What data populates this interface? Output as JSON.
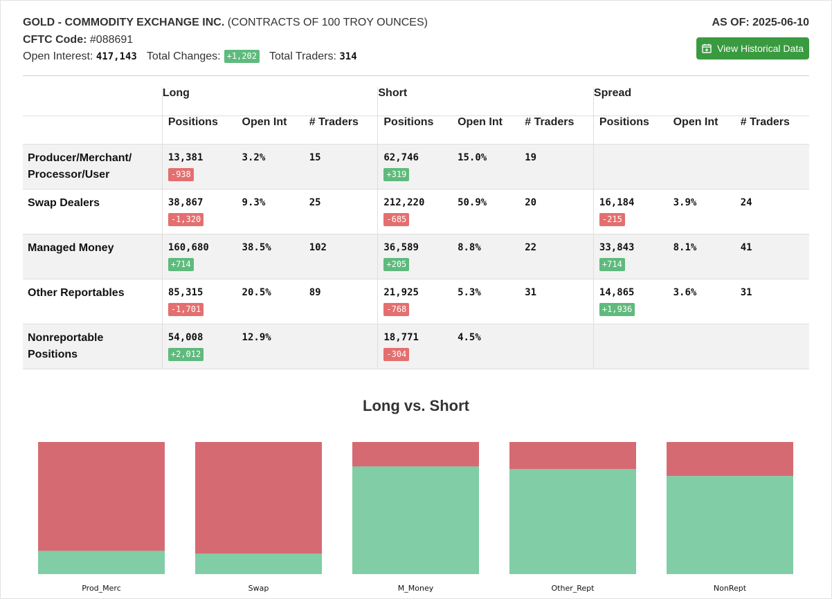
{
  "header": {
    "title": "GOLD - COMMODITY EXCHANGE INC.",
    "subtitle": "(CONTRACTS OF 100 TROY OUNCES)",
    "cftc_label": "CFTC Code:",
    "cftc_code": "#088691",
    "open_interest_label": "Open Interest:",
    "open_interest": "417,143",
    "total_changes_label": "Total Changes:",
    "total_changes": "+1,202",
    "total_traders_label": "Total Traders:",
    "total_traders": "314",
    "as_of": "AS OF: 2025-06-10",
    "history_button": "View Historical Data",
    "history_icon": "calendar-plus-icon"
  },
  "table": {
    "groups": [
      "Long",
      "Short",
      "Spread"
    ],
    "columns": [
      "Positions",
      "Open Int",
      "# Traders"
    ],
    "rows": [
      {
        "label": "Producer/Merchant/ Processor/User",
        "long": {
          "positions": "13,381",
          "change": "-938",
          "open_int": "3.2%",
          "traders": "15"
        },
        "short": {
          "positions": "62,746",
          "change": "+319",
          "open_int": "15.0%",
          "traders": "19"
        },
        "spread": {
          "positions": "",
          "change": "",
          "open_int": "",
          "traders": ""
        }
      },
      {
        "label": "Swap Dealers",
        "long": {
          "positions": "38,867",
          "change": "-1,320",
          "open_int": "9.3%",
          "traders": "25"
        },
        "short": {
          "positions": "212,220",
          "change": "-685",
          "open_int": "50.9%",
          "traders": "20"
        },
        "spread": {
          "positions": "16,184",
          "change": "-215",
          "open_int": "3.9%",
          "traders": "24"
        }
      },
      {
        "label": "Managed Money",
        "long": {
          "positions": "160,680",
          "change": "+714",
          "open_int": "38.5%",
          "traders": "102"
        },
        "short": {
          "positions": "36,589",
          "change": "+205",
          "open_int": "8.8%",
          "traders": "22"
        },
        "spread": {
          "positions": "33,843",
          "change": "+714",
          "open_int": "8.1%",
          "traders": "41"
        }
      },
      {
        "label": "Other Reportables",
        "long": {
          "positions": "85,315",
          "change": "-1,701",
          "open_int": "20.5%",
          "traders": "89"
        },
        "short": {
          "positions": "21,925",
          "change": "-768",
          "open_int": "5.3%",
          "traders": "31"
        },
        "spread": {
          "positions": "14,865",
          "change": "+1,936",
          "open_int": "3.6%",
          "traders": "31"
        }
      },
      {
        "label": "Nonreportable Positions",
        "long": {
          "positions": "54,008",
          "change": "+2,012",
          "open_int": "12.9%",
          "traders": ""
        },
        "short": {
          "positions": "18,771",
          "change": "-304",
          "open_int": "4.5%",
          "traders": ""
        },
        "spread": {
          "positions": "",
          "change": "",
          "open_int": "",
          "traders": ""
        }
      }
    ]
  },
  "colors": {
    "positive": "#5fba7d",
    "negative": "#e46f6f",
    "button": "#3a9a3f",
    "long_bar": "#80cda6",
    "short_bar": "#d66a73"
  },
  "chart_data": {
    "type": "bar",
    "stacked": true,
    "normalized": true,
    "title": "Long vs. Short",
    "categories": [
      "Prod_Merc",
      "Swap",
      "M_Money",
      "Other_Rept",
      "NonRept"
    ],
    "series": [
      {
        "values": [
          13381,
          38867,
          160680,
          85315,
          54008
        ]
      },
      {
        "values": [
          62746,
          212220,
          36589,
          21925,
          18771
        ]
      }
    ],
    "ylim": [
      0,
      1
    ],
    "grid": false,
    "legend": "none"
  }
}
